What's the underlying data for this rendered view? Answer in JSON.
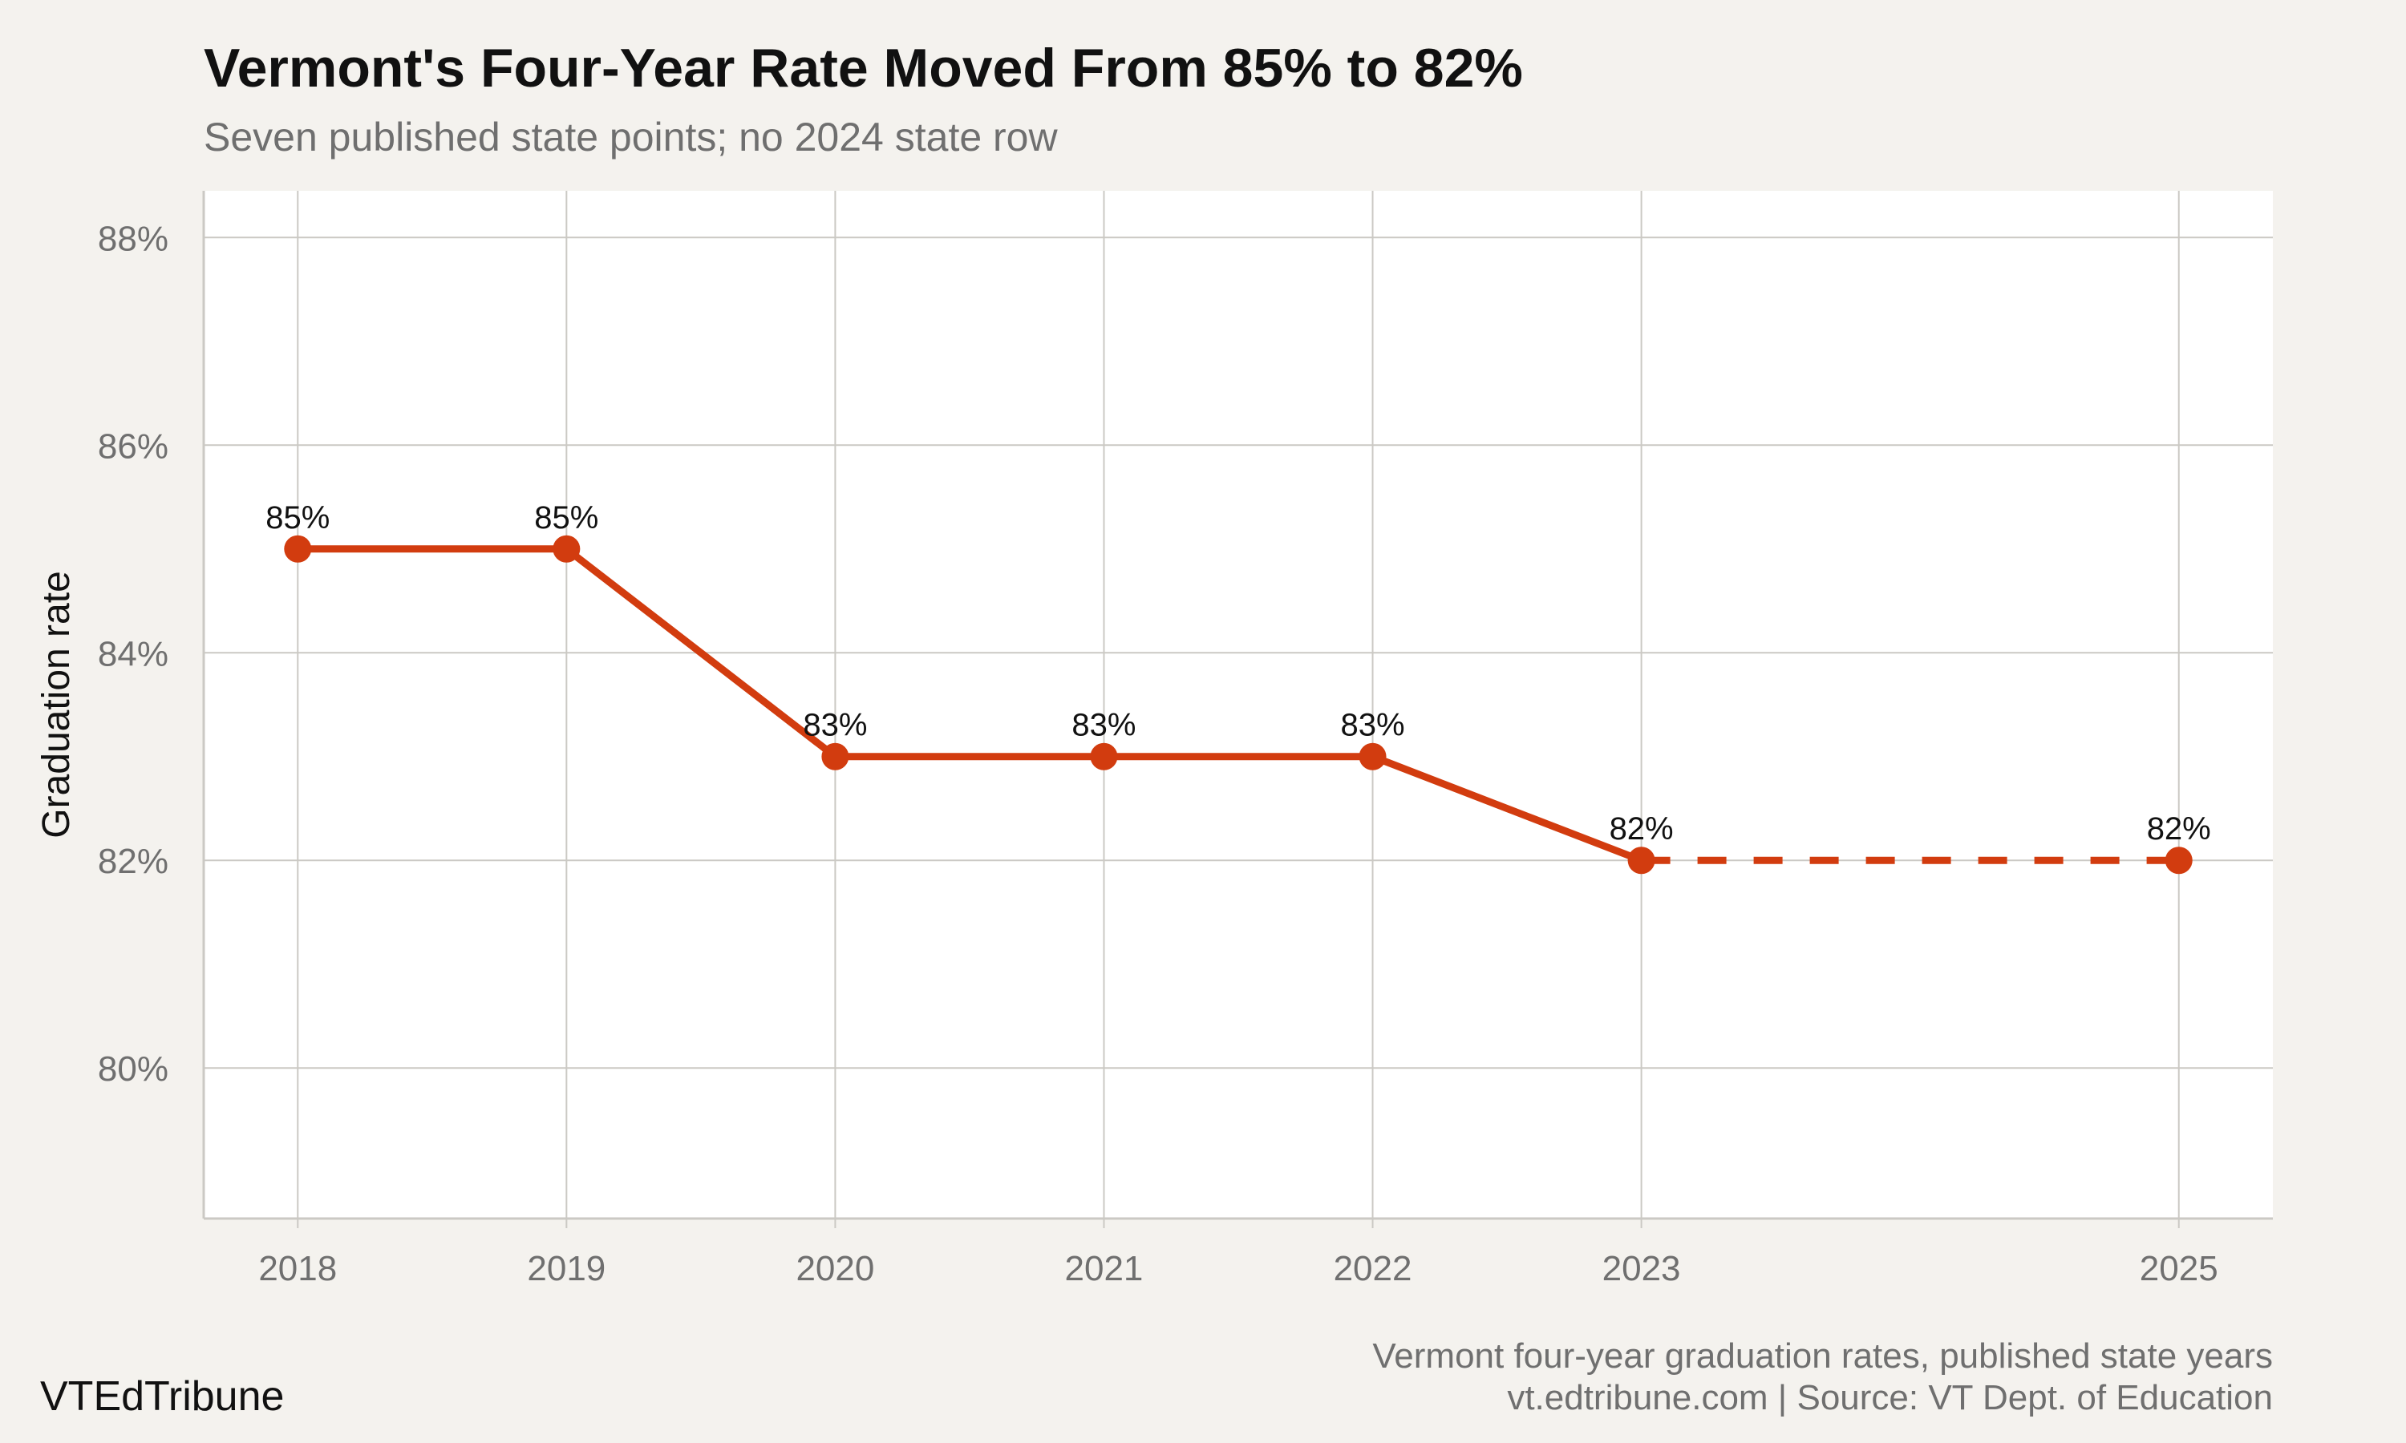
{
  "header": {
    "title": "Vermont's Four-Year Rate Moved From 85% to 82%",
    "subtitle": "Seven published state points; no 2024 state row"
  },
  "footer": {
    "brand": "VTEdTribune",
    "caption_line1": "Vermont four-year graduation rates, published state years",
    "caption_line2": "vt.edtribune.com | Source: VT Dept. of Education"
  },
  "colors": {
    "accent": "#d23c0f",
    "background": "#f4f2ee",
    "plot_background": "#ffffff",
    "grid": "#cbc9c4",
    "muted_text": "#6f6f6f"
  },
  "chart_data": {
    "type": "line",
    "title": "Vermont's Four-Year Rate Moved From 85% to 82%",
    "subtitle": "Seven published state points; no 2024 state row",
    "xlabel": "",
    "ylabel": "Graduation rate",
    "x_ticks": [
      "2018",
      "2019",
      "2020",
      "2021",
      "2022",
      "2023",
      "2025"
    ],
    "y_ticks": [
      "80%",
      "82%",
      "84%",
      "86%",
      "88%"
    ],
    "y_tick_values": [
      80,
      82,
      84,
      86,
      88
    ],
    "xlim": [
      2017.65,
      2025.35
    ],
    "ylim": [
      78.55,
      88.45
    ],
    "grid": true,
    "series": [
      {
        "x": [
          2018,
          2019,
          2020,
          2021,
          2022,
          2023,
          2025
        ],
        "values": [
          85,
          85,
          83,
          83,
          83,
          82,
          82
        ],
        "labels": [
          "85%",
          "85%",
          "83%",
          "83%",
          "83%",
          "82%",
          "82%"
        ],
        "dashed_gap_from": 2023,
        "dashed_gap_to": 2025
      }
    ]
  }
}
